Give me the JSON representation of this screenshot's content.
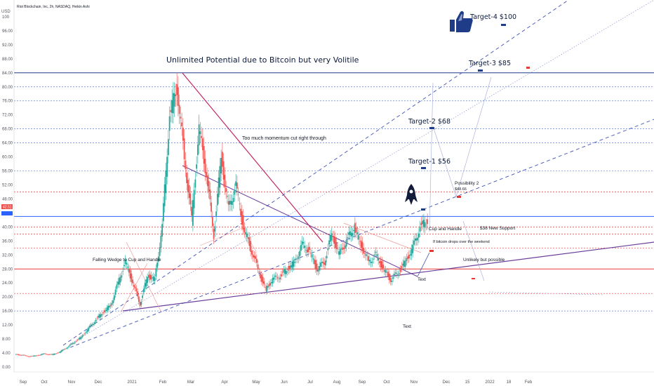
{
  "chart_data": {
    "type": "candlestick",
    "title": "Riot Blockchain, Inc, 2h, NASDAQ, Heikin Ashi",
    "ylabel": "USD",
    "ylim": [
      0,
      104
    ],
    "y_ticks": [
      "0.00",
      "4.00",
      "8.00",
      "12.00",
      "16.00",
      "20.00",
      "24.00",
      "28.00",
      "32.00",
      "36.00",
      "40.00",
      "44.00",
      "48.00",
      "52.00",
      "56.00",
      "60.00",
      "64.00",
      "68.00",
      "72.00",
      "76.00",
      "80.00",
      "84.00",
      "88.00",
      "92.00",
      "96.00",
      "100"
    ],
    "x_ticks": [
      "Sep",
      "Oct",
      "Nov",
      "Dec",
      "2021",
      "Feb",
      "Mar",
      "Apr",
      "May",
      "Jun",
      "Jul",
      "Aug",
      "Sep",
      "Oct",
      "Nov",
      "Dec",
      "15",
      "2022",
      "18",
      "Feb"
    ],
    "last_price": "42.51",
    "price_series": [
      3.6,
      3.4,
      3.0,
      3.3,
      3.8,
      3.5,
      4.2,
      5.5,
      7,
      8.5,
      11,
      13.5,
      15.8,
      17.6,
      24,
      30,
      24,
      18,
      26,
      25,
      40,
      72,
      80,
      60,
      42,
      68,
      55,
      38,
      60,
      45,
      52,
      40,
      34,
      28,
      22,
      25,
      26,
      28,
      30,
      35,
      33,
      28,
      30,
      38,
      32,
      36,
      40,
      35,
      30,
      32,
      28,
      25,
      27,
      30,
      34,
      40,
      42
    ],
    "annotations": {
      "headline": "Unlimited Potential due to Bitcoin but very Volitile",
      "momentum": "Too much momentum cut right through",
      "wedge": "Falling Wedge to Cup and Handle",
      "cup": "Cup and Handle",
      "weekend": "If bitcoin drops over the weekend",
      "support": "$38 New Support",
      "unlikely": "Unlikely but possible",
      "possibility": "Possibility 2",
      "possibility_price": "$48.66",
      "text1": "Text",
      "text2": "Text",
      "target1": "Target-1 $56",
      "target2": "Target-2 $68",
      "target3": "Target-3 $85",
      "target4": "Target-4 $100"
    },
    "horizontal_levels": [
      {
        "value": 84,
        "color": "#1f3c88",
        "style": "solid"
      },
      {
        "value": 43,
        "color": "#2962ff",
        "style": "solid"
      },
      {
        "value": 28,
        "color": "#e53935",
        "style": "solid"
      },
      {
        "value": 80,
        "color": "#5b7fd6",
        "style": "dotted"
      },
      {
        "value": 76,
        "color": "#5b7fd6",
        "style": "dotted"
      },
      {
        "value": 68,
        "color": "#5b7fd6",
        "style": "dotted"
      },
      {
        "value": 64,
        "color": "#5b7fd6",
        "style": "dotted"
      },
      {
        "value": 56,
        "color": "#5b7fd6",
        "style": "dotted"
      },
      {
        "value": 50,
        "color": "#e53935",
        "style": "dotted"
      },
      {
        "value": 40,
        "color": "#e53935",
        "style": "dotted"
      },
      {
        "value": 38,
        "color": "#e53935",
        "style": "dotted"
      },
      {
        "value": 34,
        "color": "#e53935",
        "style": "dotted"
      },
      {
        "value": 21,
        "color": "#e53935",
        "style": "dotted"
      },
      {
        "value": 16,
        "color": "#5b7fd6",
        "style": "dotted"
      }
    ],
    "colors": {
      "up": "#26a69a",
      "down": "#ef5350",
      "trend": "#6a3d9a",
      "falling": "#c2185b",
      "channel": "#3f51b5"
    }
  }
}
